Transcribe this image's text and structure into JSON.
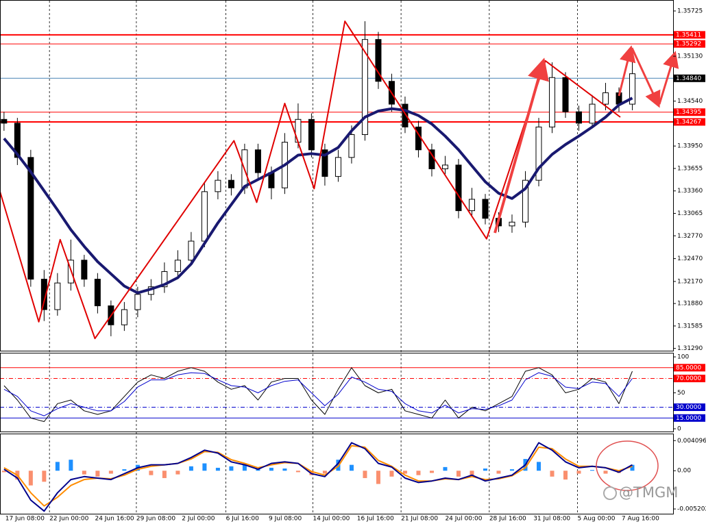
{
  "chart_data": [
    {
      "type": "candlestick",
      "xlim": [
        -0.3,
        50.05
      ],
      "xticks": [
        {
          "value": 0.1,
          "label": "17 Jun 08:00"
        },
        {
          "value": 3.4,
          "label": "22 Jun 00:00"
        },
        {
          "value": 6.8,
          "label": "24 Jun 16:00"
        },
        {
          "value": 9.9,
          "label": "29 Jun 08:00"
        },
        {
          "value": 13.3,
          "label": "2 Jul 00:00"
        },
        {
          "value": 16.6,
          "label": "6 Jul 16:00"
        },
        {
          "value": 19.8,
          "label": "9 Jul 08:00"
        },
        {
          "value": 23.1,
          "label": "14 Jul 00:00"
        },
        {
          "value": 26.4,
          "label": "16 Jul 16:00"
        },
        {
          "value": 29.7,
          "label": "21 Jul 08:00"
        },
        {
          "value": 33.0,
          "label": "24 Jul 00:00"
        },
        {
          "value": 36.3,
          "label": "28 Jul 16:00"
        },
        {
          "value": 39.6,
          "label": "31 Jul 08:00"
        },
        {
          "value": 42.9,
          "label": "5 Aug 00:00"
        },
        {
          "value": 46.2,
          "label": "7 Aug 16:00"
        }
      ],
      "ylim": [
        1.3126,
        1.3586
      ],
      "yticks": [
        1.35725,
        {
          "value": 1.3513,
          "label": "1.35130"
        },
        {
          "value": 1.3454,
          "label": "1.34540"
        },
        {
          "value": 1.3395,
          "label": "1.33950"
        },
        1.33655,
        {
          "value": 1.3336,
          "label": "1.33360"
        },
        1.33065,
        {
          "value": 1.3277,
          "label": "1.32770"
        },
        {
          "value": 1.3247,
          "label": "1.32470"
        },
        {
          "value": 1.3217,
          "label": "1.32170"
        },
        {
          "value": 1.3188,
          "label": "1.31880"
        },
        1.31585,
        {
          "value": 1.3129,
          "label": "1.31290"
        }
      ],
      "up_color": "#ffffff",
      "down_color": "#000000",
      "candles": {
        "open": [
          1.343,
          1.3425,
          1.338,
          1.322,
          1.318,
          1.3215,
          1.3245,
          1.322,
          1.3185,
          1.316,
          1.318,
          1.32,
          1.321,
          1.323,
          1.3245,
          1.327,
          1.3335,
          1.335,
          1.334,
          1.339,
          1.336,
          1.334,
          1.34,
          1.343,
          1.339,
          1.3355,
          1.338,
          1.341,
          1.3535,
          1.348,
          1.345,
          1.342,
          1.339,
          1.3365,
          1.337,
          1.331,
          1.3325,
          1.33,
          1.329,
          1.3295,
          1.335,
          1.342,
          1.3485,
          1.344,
          1.3425,
          1.345,
          1.3465,
          1.345
        ],
        "high": [
          1.344,
          1.3432,
          1.339,
          1.3232,
          1.3228,
          1.3272,
          1.3252,
          1.3228,
          1.3192,
          1.319,
          1.321,
          1.322,
          1.3242,
          1.3258,
          1.3282,
          1.3348,
          1.3362,
          1.3358,
          1.3398,
          1.3398,
          1.3368,
          1.3412,
          1.3451,
          1.3438,
          1.3398,
          1.339,
          1.3422,
          1.3559,
          1.3545,
          1.349,
          1.346,
          1.3428,
          1.3398,
          1.3382,
          1.3378,
          1.334,
          1.3332,
          1.3308,
          1.3305,
          1.3362,
          1.3432,
          1.3505,
          1.3492,
          1.3448,
          1.3462,
          1.3478,
          1.3472,
          1.3505
        ],
        "low": [
          1.3415,
          1.337,
          1.321,
          1.3165,
          1.3172,
          1.3205,
          1.321,
          1.3175,
          1.3145,
          1.3152,
          1.317,
          1.3192,
          1.3202,
          1.322,
          1.3238,
          1.3262,
          1.3325,
          1.333,
          1.3332,
          1.335,
          1.3325,
          1.3332,
          1.3392,
          1.338,
          1.3343,
          1.3348,
          1.3372,
          1.3402,
          1.347,
          1.344,
          1.3412,
          1.338,
          1.3355,
          1.3358,
          1.33,
          1.3302,
          1.3292,
          1.3282,
          1.3281,
          1.3288,
          1.3342,
          1.3412,
          1.3432,
          1.3415,
          1.3418,
          1.3442,
          1.344,
          1.3442
        ],
        "close": [
          1.3425,
          1.338,
          1.322,
          1.318,
          1.3215,
          1.3245,
          1.322,
          1.3185,
          1.316,
          1.318,
          1.32,
          1.321,
          1.323,
          1.3245,
          1.327,
          1.3335,
          1.335,
          1.334,
          1.339,
          1.336,
          1.334,
          1.34,
          1.343,
          1.339,
          1.3355,
          1.338,
          1.341,
          1.3535,
          1.348,
          1.345,
          1.342,
          1.339,
          1.3365,
          1.337,
          1.331,
          1.3325,
          1.33,
          1.329,
          1.3295,
          1.335,
          1.342,
          1.3485,
          1.344,
          1.3425,
          1.345,
          1.3465,
          1.345,
          1.349
        ]
      },
      "ma": {
        "color": "#191970",
        "values": [
          1.3405,
          1.3384,
          1.3361,
          1.3336,
          1.3311,
          1.3285,
          1.3263,
          1.3243,
          1.3227,
          1.3211,
          1.3202,
          1.3207,
          1.3213,
          1.3222,
          1.324,
          1.3267,
          1.3294,
          1.3318,
          1.3342,
          1.3351,
          1.336,
          1.337,
          1.3383,
          1.3385,
          1.3383,
          1.3393,
          1.3415,
          1.3433,
          1.3441,
          1.3444,
          1.3442,
          1.3435,
          1.3424,
          1.3408,
          1.339,
          1.3369,
          1.3348,
          1.3333,
          1.3326,
          1.3339,
          1.3366,
          1.3384,
          1.3397,
          1.3408,
          1.342,
          1.3433,
          1.3449,
          1.3458
        ]
      },
      "zigzag": {
        "color": "#e00000",
        "x": [
          -0.3,
          2.6,
          4.2,
          6.8,
          17.2,
          18.9,
          21.0,
          23.2,
          25.5,
          36.1,
          40.5,
          46.1
        ],
        "values": [
          1.3335,
          1.3164,
          1.3272,
          1.3142,
          1.3402,
          1.3321,
          1.3451,
          1.3339,
          1.3559,
          1.3273,
          1.3507,
          1.3433
        ]
      },
      "levels": [
        {
          "value": 1.35411,
          "color": "#ff0000",
          "label_color": "#ff0000",
          "width": 2
        },
        {
          "value": 1.35292,
          "color": "#ff0000",
          "label_color": "#ff0000",
          "width": 1
        },
        {
          "value": 1.3484,
          "label": "1.34840",
          "color": "#4682b4",
          "label_color": "#000000",
          "width": 1
        },
        {
          "value": 1.34395,
          "color": "#ff0000",
          "label_color": "#ff0000",
          "width": 1
        },
        {
          "value": 1.34267,
          "color": "#ff0000",
          "label_color": "#ff0000",
          "width": 2
        }
      ],
      "grid": true
    },
    {
      "type": "line",
      "ylim": [
        -3.8,
        104.8
      ],
      "yticks": [
        100,
        50,
        0
      ],
      "levels": [
        {
          "value": 85,
          "label": "85.0000",
          "color": "#ff0000",
          "label_color": "#ff0000",
          "style": "solid"
        },
        {
          "value": 70,
          "label": "70.0000",
          "color": "#ff0000",
          "label_color": "#ff0000",
          "style": "dashdot"
        },
        {
          "value": 30,
          "label": "30.0000",
          "color": "#0000cc",
          "label_color": "#0000cc",
          "style": "dashdot"
        },
        {
          "value": 15,
          "label": "15.0000",
          "color": "#0000cc",
          "label_color": "#0000cc",
          "style": "solid"
        }
      ],
      "series": [
        {
          "color": "#000000",
          "values": [
            60,
            40,
            15,
            10,
            35,
            40,
            25,
            20,
            25,
            45,
            65,
            75,
            70,
            80,
            85,
            80,
            65,
            55,
            60,
            40,
            65,
            70,
            70,
            40,
            20,
            55,
            85,
            60,
            50,
            55,
            25,
            20,
            15,
            40,
            15,
            30,
            25,
            35,
            45,
            80,
            85,
            75,
            50,
            55,
            70,
            65,
            35,
            80
          ]
        },
        {
          "color": "#0000cc",
          "values": [
            55,
            45,
            25,
            18,
            28,
            35,
            30,
            25,
            25,
            38,
            58,
            68,
            68,
            75,
            78,
            77,
            68,
            60,
            58,
            50,
            60,
            66,
            68,
            50,
            32,
            48,
            72,
            65,
            55,
            52,
            35,
            25,
            22,
            33,
            22,
            28,
            27,
            32,
            40,
            68,
            78,
            73,
            58,
            56,
            65,
            63,
            45,
            70
          ]
        }
      ]
    },
    {
      "type": "macd",
      "ylim": [
        -0.00585,
        0.00496
      ],
      "yticks": [
        0.0040969,
        {
          "value": 0,
          "label": "0.00"
        },
        -0.005202
      ],
      "histogram": {
        "up_color": "#1e90ff",
        "down_color": "#fa8f6e",
        "values": [
          -0.0002,
          -0.0012,
          -0.002,
          -0.0015,
          0.0012,
          0.0015,
          -0.0005,
          -0.0008,
          -0.0004,
          0.0002,
          0.0008,
          -0.0006,
          -0.001,
          -0.0005,
          0.0006,
          0.001,
          0.0004,
          0.0006,
          0.0009,
          0.0002,
          0.0004,
          0.0003,
          -0.0002,
          -0.0006,
          -0.0004,
          0.0015,
          0.0008,
          -0.001,
          -0.0018,
          -0.0008,
          -0.0004,
          -0.0006,
          -0.0003,
          0.0005,
          -0.0008,
          -0.0006,
          0.0003,
          -0.0004,
          0.0002,
          0.0016,
          0.0012,
          -0.0008,
          -0.0012,
          -0.0004,
          0.0001,
          -0.0004,
          -0.0003,
          0.0008
        ]
      },
      "series": [
        {
          "color": "#ff8c00",
          "values": [
            0.0004,
            -0.0006,
            -0.003,
            -0.0048,
            -0.0036,
            -0.002,
            -0.0012,
            -0.001,
            -0.0011,
            -0.0006,
            0.0002,
            0.0006,
            0.0008,
            0.001,
            0.0016,
            0.0026,
            0.0025,
            0.0015,
            0.001,
            0.0004,
            0.0008,
            0.0011,
            0.001,
            -0.0001,
            -0.0006,
            0.0006,
            0.0034,
            0.0032,
            0.0014,
            0.0006,
            -0.0006,
            -0.0014,
            -0.0014,
            -0.0011,
            -0.0012,
            -0.0008,
            -0.0012,
            -0.0011,
            -0.0007,
            0.0004,
            0.0032,
            0.003,
            0.0016,
            0.0006,
            0.0006,
            0.0004,
            0,
            0.0006
          ]
        },
        {
          "color": "#00008b",
          "values": [
            0.0002,
            -0.001,
            -0.004,
            -0.0055,
            -0.003,
            -0.0012,
            -0.0008,
            -0.001,
            -0.0012,
            -0.0004,
            0.0004,
            0.0008,
            0.0008,
            0.001,
            0.0018,
            0.0028,
            0.0024,
            0.0012,
            0.0008,
            0.0002,
            0.001,
            0.0012,
            0.001,
            -0.0004,
            -0.0008,
            0.001,
            0.0038,
            0.003,
            0.001,
            0.0005,
            -0.001,
            -0.0016,
            -0.0014,
            -0.001,
            -0.0012,
            -0.0006,
            -0.0014,
            -0.001,
            -0.0006,
            0.0008,
            0.0038,
            0.0028,
            0.0012,
            0.0004,
            0.0006,
            0.0004,
            -0.0002,
            0.0008
          ]
        }
      ],
      "watermark": "@TMGM"
    }
  ]
}
